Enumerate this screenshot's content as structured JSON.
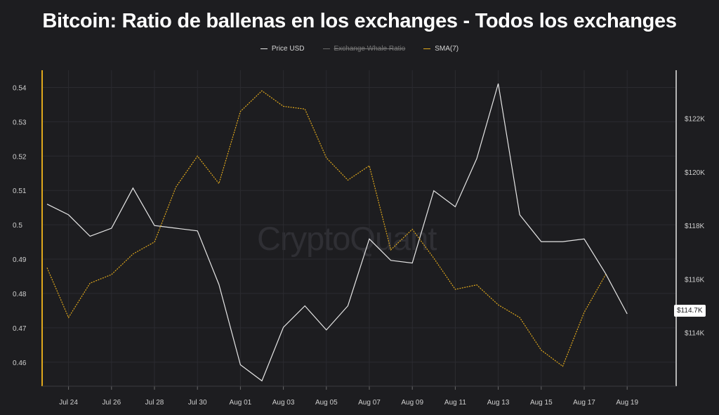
{
  "chart_data": {
    "type": "line",
    "title": "Bitcoin: Ratio de ballenas en los exchanges - Todos los exchanges",
    "legend": [
      {
        "label": "Price USD",
        "color": "#e6e6e6",
        "visible": true
      },
      {
        "label": "Exchange Whale Ratio",
        "color": "#8a8a8a",
        "visible": false
      },
      {
        "label": "SMA(7)",
        "color": "#e0a81c",
        "visible": true
      }
    ],
    "legend_position": "top-center",
    "watermark": "CryptoQuant",
    "x_ticks": [
      "Jul 24",
      "Jul 26",
      "Jul 28",
      "Jul 30",
      "Aug 01",
      "Aug 03",
      "Aug 05",
      "Aug 07",
      "Aug 09",
      "Aug 11",
      "Aug 13",
      "Aug 15",
      "Aug 17",
      "Aug 19"
    ],
    "y_left": {
      "ticks": [
        "0.46",
        "0.47",
        "0.48",
        "0.49",
        "0.5",
        "0.51",
        "0.52",
        "0.53",
        "0.54"
      ],
      "range": [
        0.453,
        0.545
      ]
    },
    "y_right": {
      "ticks": [
        "$114K",
        "$116K",
        "$118K",
        "$120K",
        "$122K"
      ],
      "range": [
        112000,
        123800
      ]
    },
    "price_label": "$114.7K",
    "grid": true,
    "x": [
      "Jul 23",
      "Jul 24",
      "Jul 25",
      "Jul 26",
      "Jul 27",
      "Jul 28",
      "Jul 29",
      "Jul 30",
      "Jul 31",
      "Aug 01",
      "Aug 02",
      "Aug 03",
      "Aug 04",
      "Aug 05",
      "Aug 06",
      "Aug 07",
      "Aug 08",
      "Aug 09",
      "Aug 10",
      "Aug 11",
      "Aug 12",
      "Aug 13",
      "Aug 14",
      "Aug 15",
      "Aug 16",
      "Aug 17",
      "Aug 18",
      "Aug 19"
    ],
    "series": [
      {
        "name": "Price USD",
        "axis": "right",
        "color": "#e6e6e6",
        "values": [
          118800,
          118400,
          117600,
          117900,
          119400,
          118000,
          117900,
          117800,
          115800,
          112800,
          112200,
          114200,
          115000,
          114100,
          115000,
          117500,
          116700,
          116600,
          119300,
          118700,
          120500,
          123300,
          118400,
          117400,
          117400,
          117500,
          116200,
          114700
        ]
      },
      {
        "name": "SMA(7)",
        "axis": "left",
        "color": "#e0a81c",
        "values": [
          0.4875,
          0.473,
          0.483,
          0.4855,
          0.4915,
          0.495,
          0.511,
          0.52,
          0.512,
          0.533,
          0.539,
          0.5345,
          0.5337,
          0.5195,
          0.513,
          0.5172,
          0.4927,
          0.4987,
          0.4903,
          0.4812,
          0.4825,
          0.4767,
          0.473,
          0.4635,
          0.4588,
          0.4745,
          0.4855,
          null
        ]
      }
    ]
  }
}
